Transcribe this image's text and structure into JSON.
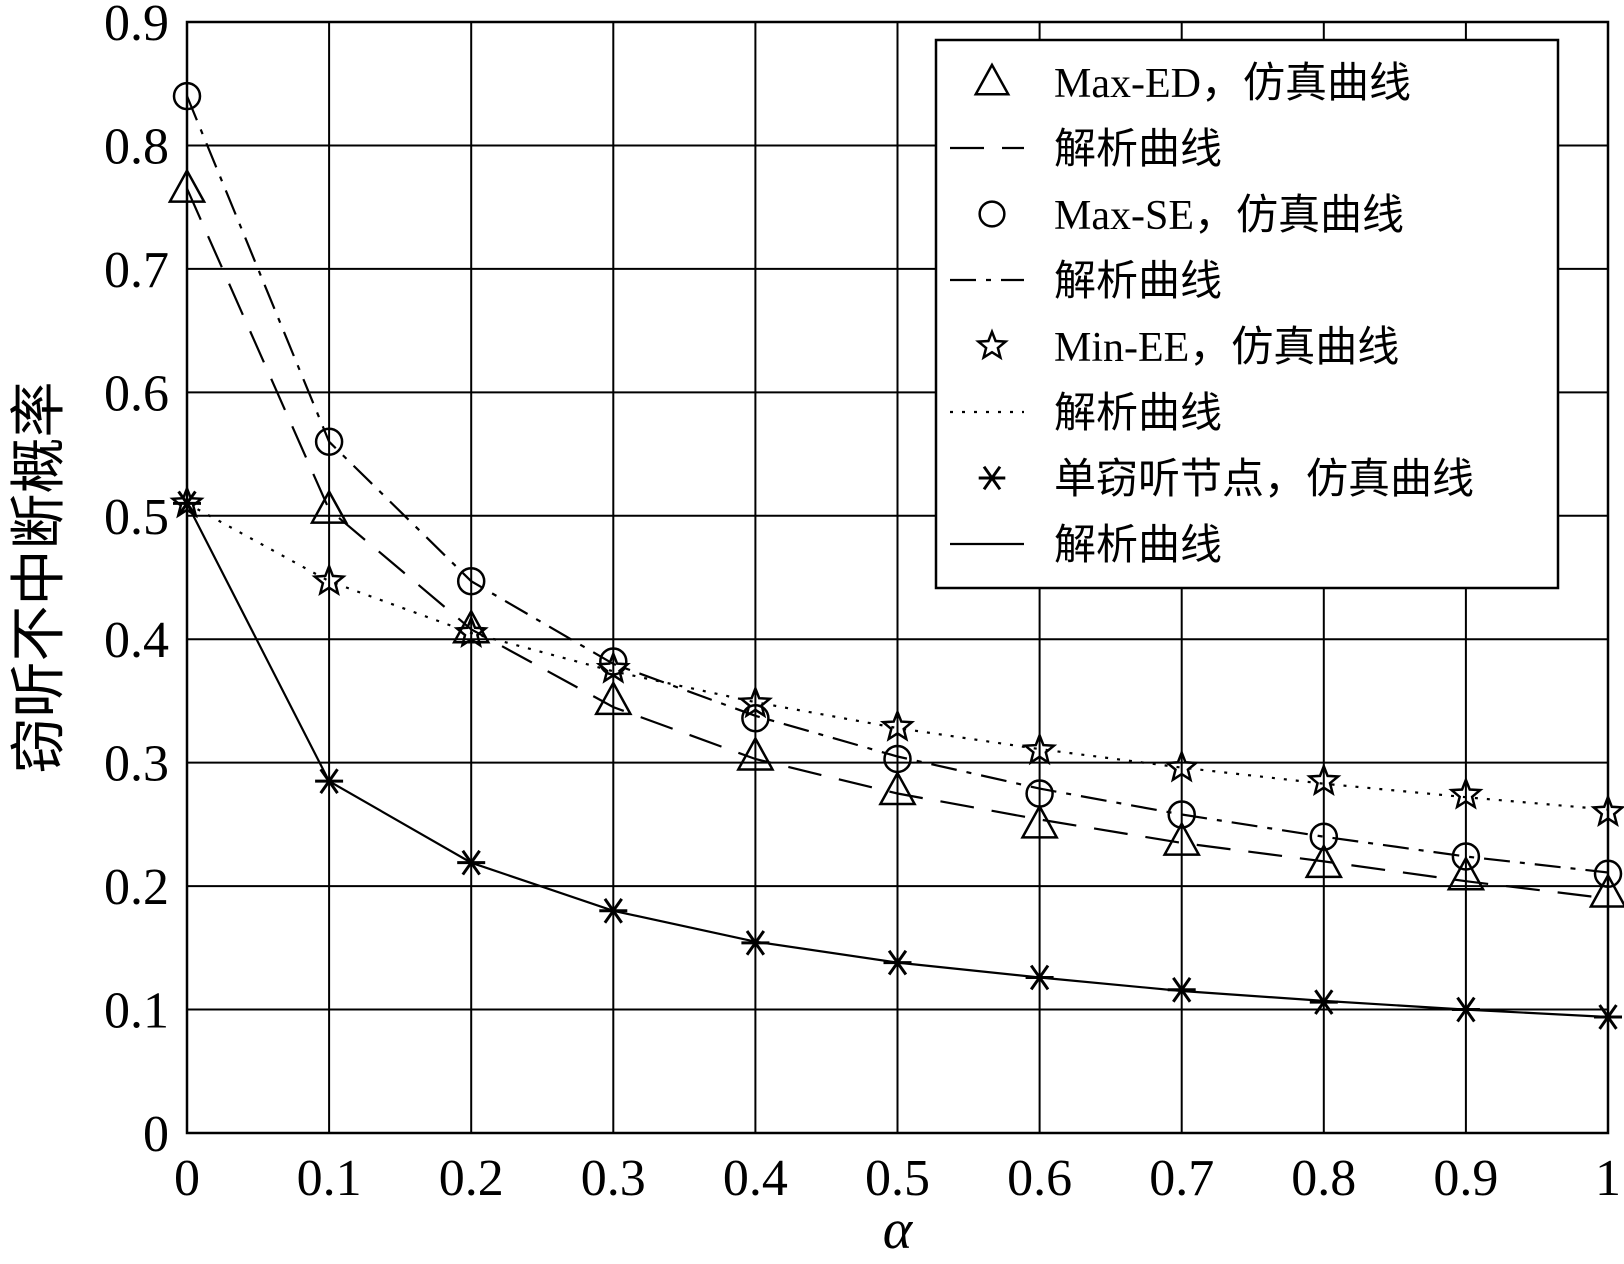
{
  "chart_data": {
    "type": "line",
    "title": "",
    "xlabel": "α",
    "ylabel": "窃听不中断概率",
    "xlim": [
      0,
      1
    ],
    "ylim": [
      0,
      0.9
    ],
    "xticks": [
      "0",
      "0.1",
      "0.2",
      "0.3",
      "0.4",
      "0.5",
      "0.6",
      "0.7",
      "0.8",
      "0.9",
      "1"
    ],
    "yticks": [
      "0",
      "0.1",
      "0.2",
      "0.3",
      "0.4",
      "0.5",
      "0.6",
      "0.7",
      "0.8",
      "0.9"
    ],
    "grid": true,
    "legend_position": "top-right",
    "x": [
      0,
      0.1,
      0.2,
      0.3,
      0.4,
      0.5,
      0.6,
      0.7,
      0.8,
      0.9,
      1.0
    ],
    "series": [
      {
        "name": "Max-ED，仿真曲线",
        "kind": "markers",
        "marker": "triangle",
        "values": [
          0.765,
          0.505,
          0.408,
          0.35,
          0.305,
          0.277,
          0.25,
          0.236,
          0.218,
          0.208,
          0.194
        ]
      },
      {
        "name": "解析曲线",
        "kind": "line",
        "dash": "dashed",
        "values": [
          0.765,
          0.505,
          0.408,
          0.345,
          0.303,
          0.275,
          0.254,
          0.235,
          0.22,
          0.204,
          0.19
        ]
      },
      {
        "name": "Max-SE，仿真曲线",
        "kind": "markers",
        "marker": "circle",
        "values": [
          0.84,
          0.56,
          0.447,
          0.382,
          0.336,
          0.303,
          0.275,
          0.258,
          0.24,
          0.224,
          0.21
        ]
      },
      {
        "name": "解析曲线",
        "kind": "line",
        "dash": "dashdot",
        "values": [
          0.84,
          0.56,
          0.447,
          0.38,
          0.338,
          0.305,
          0.279,
          0.258,
          0.24,
          0.224,
          0.211
        ]
      },
      {
        "name": "Min-EE，仿真曲线",
        "kind": "markers",
        "marker": "star",
        "values": [
          0.51,
          0.447,
          0.405,
          0.376,
          0.348,
          0.329,
          0.31,
          0.296,
          0.285,
          0.274,
          0.26
        ]
      },
      {
        "name": "解析曲线",
        "kind": "line",
        "dash": "dotted",
        "values": [
          0.51,
          0.447,
          0.405,
          0.374,
          0.349,
          0.328,
          0.311,
          0.296,
          0.283,
          0.272,
          0.262
        ]
      },
      {
        "name": "单窃听节点，仿真曲线",
        "kind": "markers",
        "marker": "asterisk",
        "values": [
          0.51,
          0.285,
          0.219,
          0.18,
          0.154,
          0.138,
          0.126,
          0.116,
          0.106,
          0.1,
          0.094
        ]
      },
      {
        "name": "解析曲线",
        "kind": "line",
        "dash": "solid",
        "values": [
          0.51,
          0.285,
          0.219,
          0.18,
          0.155,
          0.138,
          0.126,
          0.115,
          0.107,
          0.1,
          0.094
        ]
      }
    ]
  }
}
